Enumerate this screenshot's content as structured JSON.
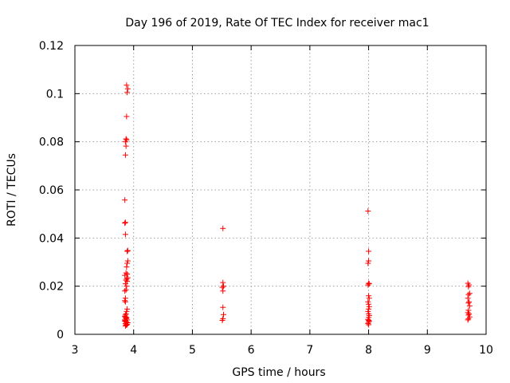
{
  "chart_data": {
    "type": "scatter",
    "title": "Day 196 of 2019, Rate Of TEC Index for receiver mac1",
    "xlabel": "GPS time / hours",
    "ylabel": "ROTI / TECUs",
    "xlim": [
      3,
      10
    ],
    "ylim": [
      0,
      0.12
    ],
    "xticks": [
      "3",
      "4",
      "5",
      "6",
      "7",
      "8",
      "9",
      "10"
    ],
    "yticks": [
      "0",
      "0.02",
      "0.04",
      "0.06",
      "0.08",
      "0.1",
      "0.12"
    ],
    "grid": true,
    "marker": "+",
    "color": "#ff0000",
    "series": [
      {
        "name": "mac1",
        "points": [
          [
            3.88,
            0.1035
          ],
          [
            3.9,
            0.102
          ],
          [
            3.89,
            0.1005
          ],
          [
            3.88,
            0.0905
          ],
          [
            3.87,
            0.0812
          ],
          [
            3.88,
            0.0808
          ],
          [
            3.86,
            0.08
          ],
          [
            3.87,
            0.0782
          ],
          [
            3.86,
            0.0745
          ],
          [
            3.85,
            0.0558
          ],
          [
            3.86,
            0.0465
          ],
          [
            3.85,
            0.0462
          ],
          [
            3.86,
            0.0415
          ],
          [
            3.9,
            0.0348
          ],
          [
            3.89,
            0.0345
          ],
          [
            3.9,
            0.0305
          ],
          [
            3.89,
            0.0295
          ],
          [
            3.88,
            0.028
          ],
          [
            3.87,
            0.0255
          ],
          [
            3.89,
            0.025
          ],
          [
            3.85,
            0.0245
          ],
          [
            3.9,
            0.0235
          ],
          [
            3.88,
            0.023
          ],
          [
            3.87,
            0.0225
          ],
          [
            3.89,
            0.022
          ],
          [
            3.86,
            0.021
          ],
          [
            3.88,
            0.02
          ],
          [
            3.87,
            0.0185
          ],
          [
            3.85,
            0.018
          ],
          [
            3.86,
            0.015
          ],
          [
            3.85,
            0.014
          ],
          [
            3.86,
            0.0135
          ],
          [
            3.89,
            0.0105
          ],
          [
            3.88,
            0.0095
          ],
          [
            3.87,
            0.0085
          ],
          [
            3.86,
            0.008
          ],
          [
            3.85,
            0.0075
          ],
          [
            3.86,
            0.007
          ],
          [
            3.88,
            0.0068
          ],
          [
            3.87,
            0.0065
          ],
          [
            3.89,
            0.006
          ],
          [
            3.86,
            0.0058
          ],
          [
            3.85,
            0.0055
          ],
          [
            3.87,
            0.0052
          ],
          [
            3.88,
            0.005
          ],
          [
            3.9,
            0.0048
          ],
          [
            3.86,
            0.0045
          ],
          [
            3.89,
            0.0042
          ],
          [
            3.87,
            0.004
          ],
          [
            3.88,
            0.0038
          ],
          [
            3.86,
            0.0035
          ],
          [
            3.85,
            0.006
          ],
          [
            3.87,
            0.0072
          ],
          [
            5.52,
            0.044
          ],
          [
            5.52,
            0.0215
          ],
          [
            5.53,
            0.02
          ],
          [
            5.51,
            0.0195
          ],
          [
            5.52,
            0.018
          ],
          [
            5.52,
            0.0112
          ],
          [
            5.53,
            0.0082
          ],
          [
            5.52,
            0.0065
          ],
          [
            5.51,
            0.0058
          ],
          [
            7.99,
            0.0512
          ],
          [
            8.0,
            0.0345
          ],
          [
            8.0,
            0.0305
          ],
          [
            7.99,
            0.0295
          ],
          [
            8.0,
            0.0212
          ],
          [
            8.01,
            0.021
          ],
          [
            7.99,
            0.0205
          ],
          [
            8.0,
            0.016
          ],
          [
            8.01,
            0.015
          ],
          [
            7.99,
            0.0135
          ],
          [
            8.0,
            0.0125
          ],
          [
            8.01,
            0.0115
          ],
          [
            8.0,
            0.0105
          ],
          [
            7.99,
            0.0095
          ],
          [
            8.0,
            0.0085
          ],
          [
            8.01,
            0.0078
          ],
          [
            8.0,
            0.007
          ],
          [
            7.99,
            0.0062
          ],
          [
            8.0,
            0.0058
          ],
          [
            8.01,
            0.0055
          ],
          [
            8.0,
            0.005
          ],
          [
            7.99,
            0.0045
          ],
          [
            8.0,
            0.004
          ],
          [
            9.69,
            0.0212
          ],
          [
            9.71,
            0.0205
          ],
          [
            9.7,
            0.0198
          ],
          [
            9.72,
            0.017
          ],
          [
            9.7,
            0.0165
          ],
          [
            9.69,
            0.015
          ],
          [
            9.71,
            0.0135
          ],
          [
            9.7,
            0.013
          ],
          [
            9.72,
            0.0118
          ],
          [
            9.7,
            0.01
          ],
          [
            9.69,
            0.009
          ],
          [
            9.71,
            0.0085
          ],
          [
            9.7,
            0.008
          ],
          [
            9.72,
            0.0072
          ],
          [
            9.7,
            0.0065
          ],
          [
            9.69,
            0.006
          ]
        ]
      }
    ]
  }
}
